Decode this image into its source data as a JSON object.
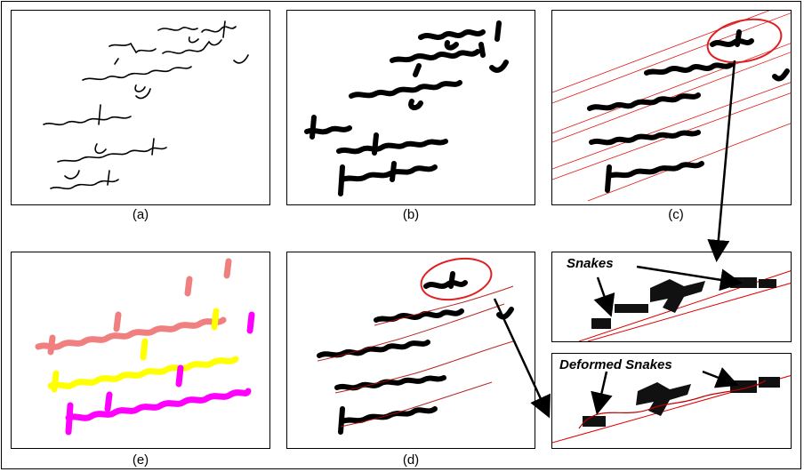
{
  "panels": {
    "a": {
      "caption": "(a)"
    },
    "b": {
      "caption": "(b)"
    },
    "c": {
      "caption": "(c)"
    },
    "d": {
      "caption": "(d)"
    },
    "e": {
      "caption": "(e)"
    }
  },
  "zoom_top": {
    "label": "Snakes"
  },
  "zoom_bottom": {
    "label": "Deformed Snakes"
  },
  "colors": {
    "ink": "#000000",
    "snake": "#e00000",
    "highlight": "#e02020",
    "line1": "#f08080",
    "line2": "#ffff00",
    "line3": "#ff00ff"
  }
}
